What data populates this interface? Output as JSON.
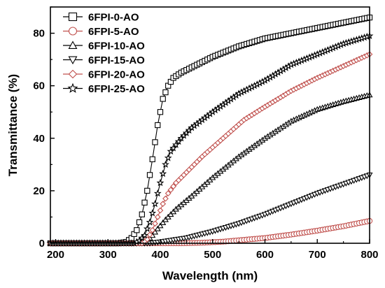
{
  "chart_data": {
    "type": "line",
    "xlabel": "Wavelength (nm)",
    "ylabel": "Transmittance (%)",
    "xlim": [
      190,
      800
    ],
    "ylim": [
      0,
      90
    ],
    "x_ticks": [
      200,
      300,
      400,
      500,
      600,
      700,
      800
    ],
    "y_ticks": [
      0,
      20,
      40,
      60,
      80
    ],
    "legend_position": "top-left",
    "series": [
      {
        "name": "6FPI-0-AO",
        "color": "#000000",
        "marker": "square",
        "points": [
          [
            190,
            0
          ],
          [
            320,
            0
          ],
          [
            335,
            0.5
          ],
          [
            345,
            2
          ],
          [
            355,
            5
          ],
          [
            365,
            11
          ],
          [
            375,
            20
          ],
          [
            385,
            32
          ],
          [
            395,
            45
          ],
          [
            405,
            55
          ],
          [
            415,
            60
          ],
          [
            425,
            63
          ],
          [
            440,
            65
          ],
          [
            460,
            67
          ],
          [
            500,
            71
          ],
          [
            550,
            75
          ],
          [
            600,
            78
          ],
          [
            650,
            80
          ],
          [
            700,
            82
          ],
          [
            750,
            84
          ],
          [
            800,
            86
          ]
        ]
      },
      {
        "name": "6FPI-5-AO",
        "color": "#c0504d",
        "marker": "circle",
        "points": [
          [
            190,
            0
          ],
          [
            440,
            0
          ],
          [
            480,
            0.2
          ],
          [
            520,
            0.6
          ],
          [
            560,
            1.3
          ],
          [
            600,
            2
          ],
          [
            650,
            3.3
          ],
          [
            700,
            4.8
          ],
          [
            750,
            6.5
          ],
          [
            800,
            8.5
          ]
        ]
      },
      {
        "name": "6FPI-10-AO",
        "color": "#000000",
        "marker": "triangle-up",
        "points": [
          [
            190,
            0
          ],
          [
            365,
            0
          ],
          [
            375,
            1
          ],
          [
            385,
            3
          ],
          [
            395,
            5.5
          ],
          [
            410,
            9
          ],
          [
            430,
            13
          ],
          [
            460,
            18
          ],
          [
            500,
            25
          ],
          [
            550,
            33
          ],
          [
            600,
            40
          ],
          [
            650,
            46.5
          ],
          [
            700,
            51
          ],
          [
            750,
            54
          ],
          [
            800,
            56.5
          ]
        ]
      },
      {
        "name": "6FPI-15-AO",
        "color": "#000000",
        "marker": "triangle-down",
        "points": [
          [
            190,
            0
          ],
          [
            380,
            0
          ],
          [
            400,
            0.5
          ],
          [
            450,
            2
          ],
          [
            500,
            4.5
          ],
          [
            550,
            7.5
          ],
          [
            600,
            11
          ],
          [
            650,
            15
          ],
          [
            700,
            19
          ],
          [
            750,
            22.5
          ],
          [
            800,
            26
          ]
        ]
      },
      {
        "name": "6FPI-20-AO",
        "color": "#c0504d",
        "marker": "diamond",
        "points": [
          [
            190,
            0
          ],
          [
            365,
            0
          ],
          [
            375,
            1.5
          ],
          [
            385,
            5
          ],
          [
            395,
            10
          ],
          [
            405,
            15
          ],
          [
            415,
            19
          ],
          [
            430,
            23
          ],
          [
            450,
            27
          ],
          [
            480,
            33
          ],
          [
            520,
            40
          ],
          [
            560,
            47
          ],
          [
            600,
            52
          ],
          [
            650,
            58
          ],
          [
            700,
            63
          ],
          [
            750,
            67.5
          ],
          [
            800,
            72
          ]
        ]
      },
      {
        "name": "6FPI-25-AO",
        "color": "#000000",
        "marker": "star",
        "points": [
          [
            190,
            0
          ],
          [
            350,
            0
          ],
          [
            360,
            1
          ],
          [
            370,
            3
          ],
          [
            380,
            8
          ],
          [
            390,
            15
          ],
          [
            400,
            23
          ],
          [
            410,
            30
          ],
          [
            420,
            35
          ],
          [
            440,
            40
          ],
          [
            460,
            44
          ],
          [
            500,
            50
          ],
          [
            550,
            57
          ],
          [
            600,
            62
          ],
          [
            650,
            68
          ],
          [
            700,
            72
          ],
          [
            750,
            76
          ],
          [
            800,
            79
          ]
        ]
      }
    ]
  }
}
